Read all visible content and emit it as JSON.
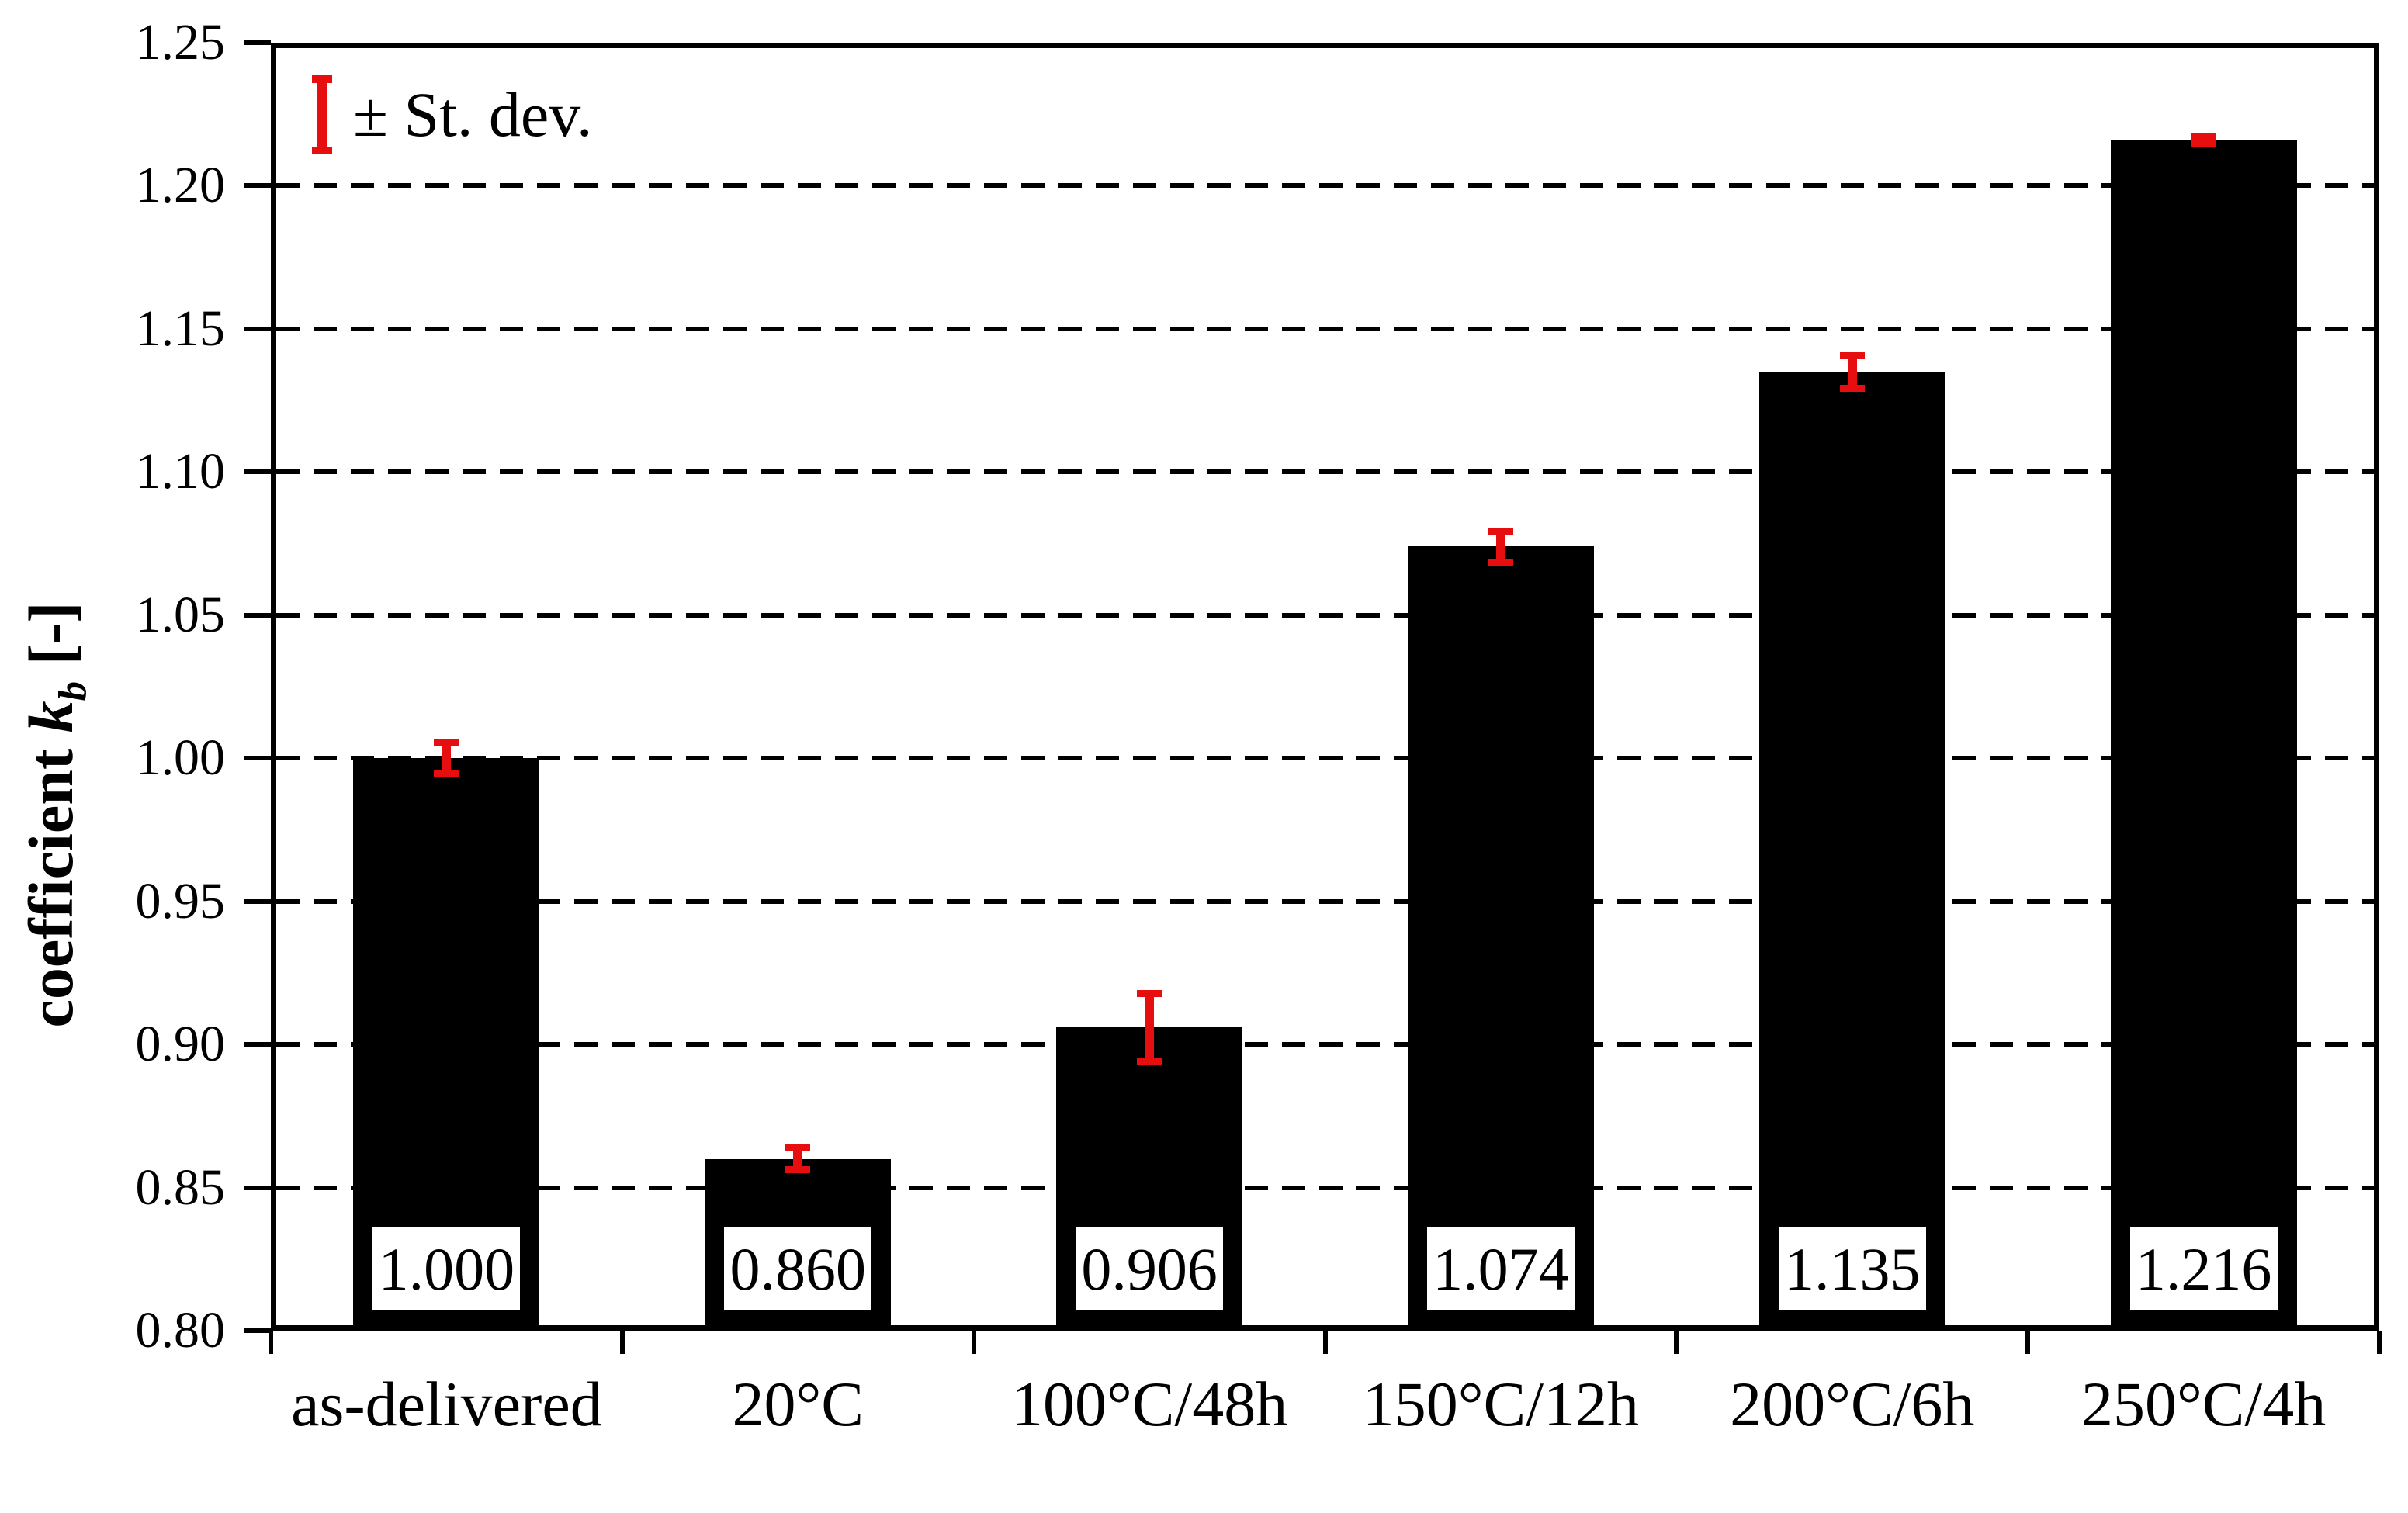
{
  "chart_data": {
    "type": "bar",
    "title": "",
    "categories": [
      "as-delivered",
      "20°C",
      "100°C/48h",
      "150°C/12h",
      "200°C/6h",
      "250°C/4h"
    ],
    "values": [
      1.0,
      0.86,
      0.906,
      1.074,
      1.135,
      1.216
    ],
    "value_labels": [
      "1.000",
      "0.860",
      "0.906",
      "1.074",
      "1.135",
      "1.216"
    ],
    "errors": [
      0.0057,
      0.0039,
      0.0118,
      0.0056,
      0.0058,
      0.0012
    ],
    "ylabel": {
      "prefix": "coefficient ",
      "symbol": "k",
      "subscript": "b",
      "suffix": " [-]"
    },
    "xlabel": "",
    "ylim": [
      0.8,
      1.25
    ],
    "ytick_step": 0.05,
    "ytick_labels": [
      "0.80",
      "0.85",
      "0.90",
      "0.95",
      "1.00",
      "1.05",
      "1.10",
      "1.15",
      "1.20",
      "1.25"
    ],
    "legend_label": "± St. dev.",
    "legend_position": "top-left",
    "grid": {
      "orientation": "horizontal",
      "style": "dashed"
    },
    "colors": {
      "bar": "#000000",
      "error": "#e60e0e",
      "grid": "#000000",
      "frame": "#000000",
      "background": "#ffffff",
      "value_box_fill": "#ffffff"
    }
  }
}
